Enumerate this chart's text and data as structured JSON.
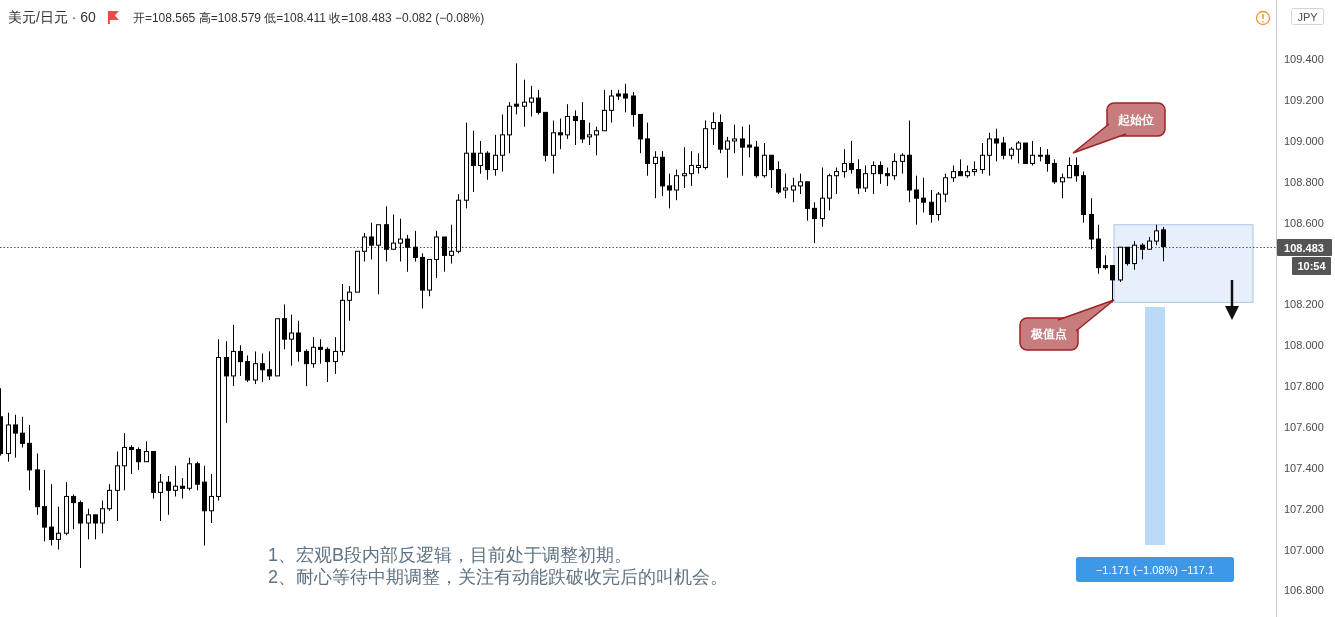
{
  "chart_data": {
    "type": "candlestick",
    "title": "美元/日元 · 60",
    "subtitle": "开=108.565 高=108.579 低=108.411 收=108.483 −0.082 (−0.08%)",
    "ylabel": "JPY",
    "categories": [
      null,
      null,
      null,
      null,
      null,
      null,
      null,
      null,
      null,
      null,
      null,
      null,
      null,
      null,
      null,
      null,
      null,
      null,
      null,
      null,
      null,
      null,
      null,
      null,
      null,
      null,
      null,
      null,
      null,
      null,
      null,
      null,
      null,
      null,
      null,
      null,
      null,
      null,
      null,
      null,
      null,
      null,
      null,
      null,
      null,
      null,
      null,
      null,
      null,
      null,
      null,
      null,
      null,
      null,
      null,
      null,
      null,
      null,
      null,
      null,
      null,
      null,
      null,
      null,
      null,
      null,
      null,
      null,
      null,
      null,
      null,
      null,
      null,
      null,
      null,
      null,
      null,
      null,
      null,
      null,
      null,
      null,
      null,
      null,
      null,
      null,
      null,
      null,
      null,
      null,
      null,
      null,
      null,
      null,
      null,
      null,
      null,
      null,
      null,
      null,
      null,
      null,
      null,
      null,
      null,
      null,
      null,
      null,
      null,
      null,
      null,
      null,
      null,
      null,
      null,
      null,
      null,
      null,
      null,
      null,
      null,
      null,
      null,
      null,
      null,
      null,
      null,
      null,
      null,
      null,
      null,
      null,
      null,
      null,
      null,
      null,
      null,
      null,
      null,
      null,
      null,
      null,
      null,
      null,
      null,
      null,
      null,
      null,
      null,
      null,
      null,
      null,
      null,
      null,
      null,
      null,
      null,
      null,
      null,
      null,
      null,
      null,
      null,
      null,
      null,
      null,
      null,
      null,
      null,
      null,
      null,
      null,
      null,
      null,
      null,
      null
    ],
    "ohlc": [
      [
        107.65,
        107.79,
        107.46,
        107.47
      ],
      [
        107.47,
        107.67,
        107.43,
        107.61
      ],
      [
        107.61,
        107.66,
        107.45,
        107.57
      ],
      [
        107.57,
        107.65,
        107.5,
        107.52
      ],
      [
        107.52,
        107.61,
        107.29,
        107.39
      ],
      [
        107.39,
        107.47,
        107.17,
        107.21
      ],
      [
        107.21,
        107.39,
        107.04,
        107.11
      ],
      [
        107.11,
        107.32,
        107.02,
        107.05
      ],
      [
        107.05,
        107.21,
        107.0,
        107.08
      ],
      [
        107.08,
        107.33,
        107.07,
        107.26
      ],
      [
        107.26,
        107.27,
        107.1,
        107.23
      ],
      [
        107.23,
        107.24,
        106.91,
        107.13
      ],
      [
        107.13,
        107.2,
        107.05,
        107.17
      ],
      [
        107.17,
        107.17,
        107.05,
        107.13
      ],
      [
        107.13,
        107.24,
        107.08,
        107.2
      ],
      [
        107.2,
        107.32,
        107.19,
        107.29
      ],
      [
        107.29,
        107.48,
        107.14,
        107.41
      ],
      [
        107.41,
        107.57,
        107.29,
        107.5
      ],
      [
        107.5,
        107.51,
        107.37,
        107.49
      ],
      [
        107.49,
        107.5,
        107.39,
        107.43
      ],
      [
        107.43,
        107.53,
        107.43,
        107.48
      ],
      [
        107.48,
        107.48,
        107.25,
        107.28
      ],
      [
        107.28,
        107.37,
        107.14,
        107.33
      ],
      [
        107.33,
        107.36,
        107.17,
        107.29
      ],
      [
        107.29,
        107.41,
        107.26,
        107.31
      ],
      [
        107.31,
        107.35,
        107.25,
        107.3
      ],
      [
        107.3,
        107.45,
        107.29,
        107.42
      ],
      [
        107.42,
        107.43,
        107.29,
        107.32
      ],
      [
        107.33,
        107.41,
        107.02,
        107.19
      ],
      [
        107.19,
        107.37,
        107.13,
        107.26
      ],
      [
        107.26,
        108.03,
        107.24,
        107.94
      ],
      [
        107.94,
        108.02,
        107.62,
        107.85
      ],
      [
        107.85,
        108.1,
        107.8,
        107.97
      ],
      [
        107.97,
        108.0,
        107.85,
        107.92
      ],
      [
        107.92,
        107.95,
        107.82,
        107.83
      ],
      [
        107.83,
        107.97,
        107.81,
        107.91
      ],
      [
        107.91,
        107.96,
        107.82,
        107.88
      ],
      [
        107.88,
        107.97,
        107.83,
        107.85
      ],
      [
        107.85,
        108.13,
        107.85,
        108.13
      ],
      [
        108.13,
        108.2,
        107.98,
        108.03
      ],
      [
        108.03,
        108.15,
        107.9,
        108.06
      ],
      [
        108.06,
        108.12,
        107.92,
        107.97
      ],
      [
        107.97,
        107.98,
        107.8,
        107.91
      ],
      [
        107.91,
        108.04,
        107.89,
        107.99
      ],
      [
        107.99,
        108.03,
        107.91,
        107.98
      ],
      [
        107.98,
        107.99,
        107.82,
        107.92
      ],
      [
        107.92,
        108.04,
        107.86,
        107.97
      ],
      [
        107.97,
        108.3,
        107.95,
        108.22
      ],
      [
        108.22,
        108.29,
        108.12,
        108.26
      ],
      [
        108.26,
        108.46,
        108.26,
        108.46
      ],
      [
        108.46,
        108.55,
        108.41,
        108.53
      ],
      [
        108.53,
        108.6,
        108.42,
        108.49
      ],
      [
        108.49,
        108.59,
        108.25,
        108.59
      ],
      [
        108.59,
        108.68,
        108.41,
        108.47
      ],
      [
        108.47,
        108.64,
        108.47,
        108.5
      ],
      [
        108.5,
        108.62,
        108.41,
        108.52
      ],
      [
        108.52,
        108.54,
        108.36,
        108.48
      ],
      [
        108.48,
        108.56,
        108.41,
        108.43
      ],
      [
        108.43,
        108.45,
        108.18,
        108.27
      ],
      [
        108.27,
        108.42,
        108.24,
        108.42
      ],
      [
        108.42,
        108.56,
        108.33,
        108.53
      ],
      [
        108.53,
        108.53,
        108.36,
        108.44
      ],
      [
        108.44,
        108.59,
        108.4,
        108.46
      ],
      [
        108.46,
        108.74,
        108.45,
        108.71
      ],
      [
        108.71,
        109.09,
        108.67,
        108.94
      ],
      [
        108.94,
        109.05,
        108.75,
        108.88
      ],
      [
        108.88,
        109.0,
        108.84,
        108.94
      ],
      [
        108.94,
        108.95,
        108.81,
        108.86
      ],
      [
        108.86,
        109.03,
        108.83,
        108.93
      ],
      [
        108.93,
        109.13,
        108.85,
        109.03
      ],
      [
        109.03,
        109.19,
        108.94,
        109.17
      ],
      [
        109.18,
        109.38,
        109.13,
        109.17
      ],
      [
        109.17,
        109.3,
        109.07,
        109.19
      ],
      [
        109.19,
        109.27,
        109.12,
        109.21
      ],
      [
        109.21,
        109.25,
        109.13,
        109.14
      ],
      [
        109.14,
        109.14,
        108.9,
        108.93
      ],
      [
        108.93,
        109.1,
        108.84,
        109.04
      ],
      [
        109.04,
        109.11,
        108.96,
        109.03
      ],
      [
        109.03,
        109.18,
        109.01,
        109.12
      ],
      [
        109.12,
        109.15,
        108.98,
        109.1
      ],
      [
        109.1,
        109.19,
        108.99,
        109.01
      ],
      [
        109.02,
        109.09,
        108.98,
        109.03
      ],
      [
        109.03,
        109.07,
        108.93,
        109.05
      ],
      [
        109.05,
        109.25,
        109.05,
        109.15
      ],
      [
        109.15,
        109.25,
        109.09,
        109.22
      ],
      [
        109.23,
        109.25,
        109.2,
        109.22
      ],
      [
        109.23,
        109.28,
        109.14,
        109.21
      ],
      [
        109.22,
        109.24,
        109.07,
        109.13
      ],
      [
        109.13,
        109.13,
        108.94,
        109.01
      ],
      [
        109.01,
        109.09,
        108.83,
        108.89
      ],
      [
        108.89,
        108.95,
        108.72,
        108.92
      ],
      [
        108.92,
        108.95,
        108.73,
        108.78
      ],
      [
        108.78,
        108.84,
        108.67,
        108.76
      ],
      [
        108.76,
        108.86,
        108.71,
        108.83
      ],
      [
        108.83,
        108.97,
        108.77,
        108.84
      ],
      [
        108.84,
        108.95,
        108.78,
        108.88
      ],
      [
        108.87,
        108.94,
        108.84,
        108.88
      ],
      [
        108.87,
        109.1,
        108.86,
        109.06
      ],
      [
        109.06,
        109.14,
        108.98,
        109.09
      ],
      [
        109.09,
        109.13,
        108.94,
        108.96
      ],
      [
        108.96,
        109.02,
        108.82,
        109.0
      ],
      [
        109.0,
        109.08,
        108.94,
        109.01
      ],
      [
        109.01,
        109.07,
        108.83,
        108.97
      ],
      [
        108.98,
        109.08,
        108.92,
        108.97
      ],
      [
        108.97,
        109.0,
        108.82,
        108.83
      ],
      [
        108.83,
        108.99,
        108.82,
        108.93
      ],
      [
        108.93,
        108.93,
        108.77,
        108.86
      ],
      [
        108.86,
        108.9,
        108.74,
        108.75
      ],
      [
        108.76,
        108.84,
        108.72,
        108.77
      ],
      [
        108.76,
        108.82,
        108.7,
        108.78
      ],
      [
        108.78,
        108.84,
        108.74,
        108.8
      ],
      [
        108.8,
        108.8,
        108.61,
        108.67
      ],
      [
        108.67,
        108.7,
        108.5,
        108.62
      ],
      [
        108.62,
        108.87,
        108.58,
        108.72
      ],
      [
        108.72,
        108.84,
        108.66,
        108.83
      ],
      [
        108.83,
        108.87,
        108.74,
        108.85
      ],
      [
        108.85,
        108.96,
        108.82,
        108.89
      ],
      [
        108.89,
        109.0,
        108.84,
        108.86
      ],
      [
        108.86,
        108.91,
        108.74,
        108.77
      ],
      [
        108.77,
        108.88,
        108.75,
        108.84
      ],
      [
        108.84,
        108.9,
        108.74,
        108.88
      ],
      [
        108.88,
        108.9,
        108.79,
        108.84
      ],
      [
        108.84,
        108.87,
        108.78,
        108.83
      ],
      [
        108.83,
        108.94,
        108.81,
        108.9
      ],
      [
        108.9,
        108.94,
        108.84,
        108.93
      ],
      [
        108.93,
        109.1,
        108.7,
        108.76
      ],
      [
        108.76,
        108.83,
        108.59,
        108.72
      ],
      [
        108.72,
        108.82,
        108.65,
        108.7
      ],
      [
        108.7,
        108.76,
        108.6,
        108.64
      ],
      [
        108.64,
        108.75,
        108.61,
        108.74
      ],
      [
        108.74,
        108.84,
        108.7,
        108.82
      ],
      [
        108.82,
        108.88,
        108.8,
        108.85
      ],
      [
        108.85,
        108.91,
        108.83,
        108.83
      ],
      [
        108.83,
        108.88,
        108.82,
        108.85
      ],
      [
        108.85,
        108.9,
        108.83,
        108.86
      ],
      [
        108.86,
        108.99,
        108.84,
        108.93
      ],
      [
        108.93,
        109.04,
        108.83,
        109.01
      ],
      [
        109.01,
        109.06,
        108.9,
        108.99
      ],
      [
        108.99,
        109.02,
        108.91,
        108.93
      ],
      [
        108.93,
        108.97,
        108.91,
        108.96
      ],
      [
        108.96,
        109.0,
        108.89,
        108.99
      ],
      [
        108.99,
        108.99,
        108.89,
        108.89
      ],
      [
        108.89,
        109.0,
        108.88,
        108.93
      ],
      [
        108.93,
        108.97,
        108.9,
        108.93
      ],
      [
        108.93,
        108.96,
        108.85,
        108.89
      ],
      [
        108.89,
        108.91,
        108.79,
        108.8
      ],
      [
        108.8,
        108.84,
        108.72,
        108.82
      ],
      [
        108.82,
        108.92,
        108.82,
        108.88
      ],
      [
        108.88,
        108.92,
        108.8,
        108.83
      ],
      [
        108.83,
        108.85,
        108.6,
        108.64
      ],
      [
        108.64,
        108.72,
        108.47,
        108.52
      ],
      [
        108.52,
        108.59,
        108.35,
        108.38
      ],
      [
        108.39,
        108.44,
        108.37,
        108.38
      ],
      [
        108.39,
        108.39,
        108.21,
        108.32
      ],
      [
        108.32,
        108.48,
        108.31,
        108.48
      ],
      [
        108.48,
        108.48,
        108.39,
        108.4
      ],
      [
        108.4,
        108.51,
        108.37,
        108.49
      ],
      [
        108.49,
        108.5,
        108.42,
        108.47
      ],
      [
        108.47,
        108.53,
        108.47,
        108.51
      ],
      [
        108.51,
        108.59,
        108.49,
        108.56
      ],
      [
        108.565,
        108.579,
        108.411,
        108.483
      ],
      null,
      null,
      null,
      null,
      null,
      null,
      null,
      null,
      null,
      null,
      null,
      null,
      null,
      null,
      null
    ],
    "ylim": [
      106.67,
      109.69
    ],
    "yticks": [
      {
        "value": 109.4,
        "label": "109.400"
      },
      {
        "value": 109.2,
        "label": "109.200"
      },
      {
        "value": 109.0,
        "label": "109.000"
      },
      {
        "value": 108.8,
        "label": "108.800"
      },
      {
        "value": 108.6,
        "label": "108.600"
      },
      {
        "value": 108.2,
        "label": "108.200"
      },
      {
        "value": 108.0,
        "label": "108.000"
      },
      {
        "value": 107.8,
        "label": "107.800"
      },
      {
        "value": 107.6,
        "label": "107.600"
      },
      {
        "value": 107.4,
        "label": "107.400"
      },
      {
        "value": 107.2,
        "label": "107.200"
      },
      {
        "value": 107.0,
        "label": "107.000"
      },
      {
        "value": 106.8,
        "label": "106.800"
      }
    ],
    "tick_labels": "y",
    "ref_lines": [
      {
        "axis": "y",
        "value": 108.483,
        "label": "108.483",
        "color": "#555555",
        "line_style": "dotted"
      }
    ],
    "bands": [
      {
        "axis": "y",
        "from": 108.21,
        "to": 108.59,
        "color": "#e6effa"
      }
    ],
    "annotations": [
      "起始位",
      "极值点",
      "1、宏观B段内部反逻辑，目前处于调整初期。",
      "2、耐心等待中期调整，关注有动能跌破收完后的叫机会。",
      "10:54",
      "−1.171 (−1.08%) −117.1"
    ]
  }
}
